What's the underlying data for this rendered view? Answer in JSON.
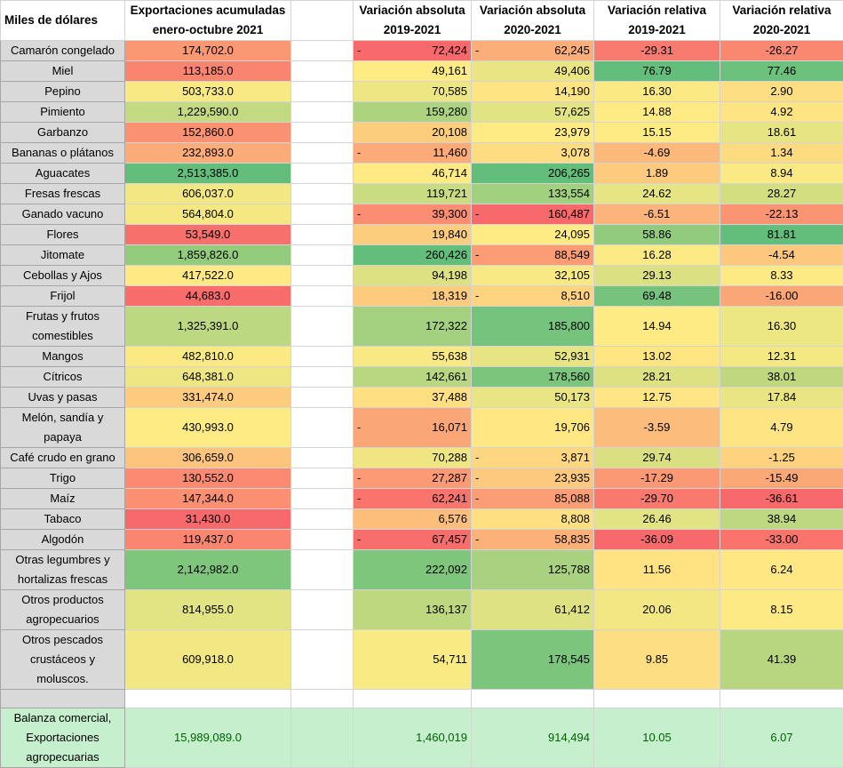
{
  "header": {
    "label": "Miles de dólares",
    "exports": [
      "Exportaciones acumuladas",
      "enero-octubre 2021"
    ],
    "abs_2019": [
      "Variación absoluta",
      "2019-2021"
    ],
    "abs_2020": [
      "Variación absoluta",
      "2020-2021"
    ],
    "rel_2019": [
      "Variación relativa",
      "2019-2021"
    ],
    "rel_2020": [
      "Variación relativa",
      "2020-2021"
    ]
  },
  "rows": [
    {
      "label": [
        "Camarón congelado"
      ],
      "exports": "174,702.0",
      "abs_2019_sign": "-",
      "abs_2019": "72,424",
      "abs_2020_sign": "-",
      "abs_2020": "62,245",
      "rel_2019": "-29.31",
      "rel_2020": "-26.27"
    },
    {
      "label": [
        "Miel"
      ],
      "exports": "113,185.0",
      "abs_2019": "49,161",
      "abs_2020": "49,406",
      "rel_2019": "76.79",
      "rel_2020": "77.46"
    },
    {
      "label": [
        "Pepino"
      ],
      "exports": "503,733.0",
      "abs_2019": "70,585",
      "abs_2020": "14,190",
      "rel_2019": "16.30",
      "rel_2020": "2.90"
    },
    {
      "label": [
        "Pimiento"
      ],
      "exports": "1,229,590.0",
      "abs_2019": "159,280",
      "abs_2020": "57,625",
      "rel_2019": "14.88",
      "rel_2020": "4.92"
    },
    {
      "label": [
        "Garbanzo"
      ],
      "exports": "152,860.0",
      "abs_2019": "20,108",
      "abs_2020": "23,979",
      "rel_2019": "15.15",
      "rel_2020": "18.61"
    },
    {
      "label": [
        "Bananas o plátanos"
      ],
      "exports": "232,893.0",
      "abs_2019_sign": "-",
      "abs_2019": "11,460",
      "abs_2020": "3,078",
      "rel_2019": "-4.69",
      "rel_2020": "1.34"
    },
    {
      "label": [
        "Aguacates"
      ],
      "exports": "2,513,385.0",
      "abs_2019": "46,714",
      "abs_2020": "206,265",
      "rel_2019": "1.89",
      "rel_2020": "8.94"
    },
    {
      "label": [
        "Fresas frescas"
      ],
      "exports": "606,037.0",
      "abs_2019": "119,721",
      "abs_2020": "133,554",
      "rel_2019": "24.62",
      "rel_2020": "28.27"
    },
    {
      "label": [
        "Ganado vacuno"
      ],
      "exports": "564,804.0",
      "abs_2019_sign": "-",
      "abs_2019": "39,300",
      "abs_2020_sign": "-",
      "abs_2020": "160,487",
      "rel_2019": "-6.51",
      "rel_2020": "-22.13"
    },
    {
      "label": [
        "Flores"
      ],
      "exports": "53,549.0",
      "abs_2019": "19,840",
      "abs_2020": "24,095",
      "rel_2019": "58.86",
      "rel_2020": "81.81"
    },
    {
      "label": [
        "Jitomate"
      ],
      "exports": "1,859,826.0",
      "abs_2019": "260,426",
      "abs_2020_sign": "-",
      "abs_2020": "88,549",
      "rel_2019": "16.28",
      "rel_2020": "-4.54"
    },
    {
      "label": [
        "Cebollas y Ajos"
      ],
      "exports": "417,522.0",
      "abs_2019": "94,198",
      "abs_2020": "32,105",
      "rel_2019": "29.13",
      "rel_2020": "8.33"
    },
    {
      "label": [
        "Frijol"
      ],
      "exports": "44,683.0",
      "abs_2019": "18,319",
      "abs_2020_sign": "-",
      "abs_2020": "8,510",
      "rel_2019": "69.48",
      "rel_2020": "-16.00"
    },
    {
      "label": [
        "Frutas y frutos",
        "comestibles"
      ],
      "exports": "1,325,391.0",
      "abs_2019": "172,322",
      "abs_2020": "185,800",
      "rel_2019": "14.94",
      "rel_2020": "16.30"
    },
    {
      "label": [
        "Mangos"
      ],
      "exports": "482,810.0",
      "abs_2019": "55,638",
      "abs_2020": "52,931",
      "rel_2019": "13.02",
      "rel_2020": "12.31"
    },
    {
      "label": [
        "Cítricos"
      ],
      "exports": "648,381.0",
      "abs_2019": "142,661",
      "abs_2020": "178,560",
      "rel_2019": "28.21",
      "rel_2020": "38.01"
    },
    {
      "label": [
        "Uvas y pasas"
      ],
      "exports": "331,474.0",
      "abs_2019": "37,488",
      "abs_2020": "50,173",
      "rel_2019": "12.75",
      "rel_2020": "17.84"
    },
    {
      "label": [
        "Melón, sandía y",
        "papaya"
      ],
      "exports": "430,993.0",
      "abs_2019_sign": "-",
      "abs_2019": "16,071",
      "abs_2020": "19,706",
      "rel_2019": "-3.59",
      "rel_2020": "4.79"
    },
    {
      "label": [
        "Café crudo en grano"
      ],
      "exports": "306,659.0",
      "abs_2019": "70,288",
      "abs_2020_sign": "-",
      "abs_2020": "3,871",
      "rel_2019": "29.74",
      "rel_2020": "-1.25"
    },
    {
      "label": [
        "Trigo"
      ],
      "exports": "130,552.0",
      "abs_2019_sign": "-",
      "abs_2019": "27,287",
      "abs_2020_sign": "-",
      "abs_2020": "23,935",
      "rel_2019": "-17.29",
      "rel_2020": "-15.49"
    },
    {
      "label": [
        "Maíz"
      ],
      "exports": "147,344.0",
      "abs_2019_sign": "-",
      "abs_2019": "62,241",
      "abs_2020_sign": "-",
      "abs_2020": "85,088",
      "rel_2019": "-29.70",
      "rel_2020": "-36.61"
    },
    {
      "label": [
        "Tabaco"
      ],
      "exports": "31,430.0",
      "abs_2019": "6,576",
      "abs_2020": "8,808",
      "rel_2019": "26.46",
      "rel_2020": "38.94"
    },
    {
      "label": [
        "Algodón"
      ],
      "exports": "119,437.0",
      "abs_2019_sign": "-",
      "abs_2019": "67,457",
      "abs_2020_sign": "-",
      "abs_2020": "58,835",
      "rel_2019": "-36.09",
      "rel_2020": "-33.00"
    },
    {
      "label": [
        "Otras legumbres y",
        "hortalizas frescas"
      ],
      "exports": "2,142,982.0",
      "abs_2019": "222,092",
      "abs_2020": "125,788",
      "rel_2019": "11.56",
      "rel_2020": "6.24"
    },
    {
      "label": [
        "Otros productos",
        "agropecuarios"
      ],
      "exports": "814,955.0",
      "abs_2019": "136,137",
      "abs_2020": "61,412",
      "rel_2019": "20.06",
      "rel_2020": "8.15"
    },
    {
      "label": [
        "Otros pescados",
        "crustáceos y",
        "moluscos."
      ],
      "exports": "609,918.0",
      "abs_2019": "54,711",
      "abs_2020": "178,545",
      "rel_2019": "9.85",
      "rel_2020": "41.39"
    }
  ],
  "total": {
    "label": [
      "Balanza comercial,",
      "Exportaciones",
      "agropecuarias"
    ],
    "exports": "15,989,089.0",
    "abs_2019": "1,460,019",
    "abs_2020": "914,494",
    "rel_2019": "10.05",
    "rel_2020": "6.07"
  }
}
